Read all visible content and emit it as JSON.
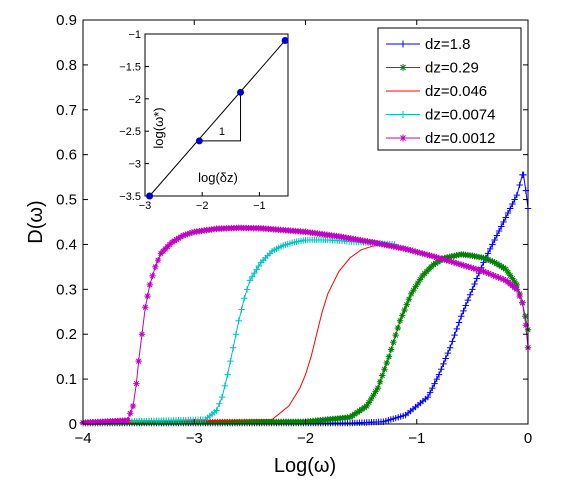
{
  "chart_data": {
    "type": "line",
    "xlabel": "Log(ω)",
    "ylabel": "D(ω)",
    "xlim": [
      -4,
      0
    ],
    "ylim": [
      0,
      0.9
    ],
    "xticks": [
      "−4",
      "−3",
      "−2",
      "−1",
      "0"
    ],
    "yticks": [
      "0",
      "0.1",
      "0.2",
      "0.3",
      "0.4",
      "0.5",
      "0.6",
      "0.7",
      "0.8",
      "0.9"
    ],
    "grid": false,
    "legend_position": "top-right",
    "series": [
      {
        "name": "dz=1.8",
        "color": "#0000ff",
        "marker": "plus",
        "x": [
          -4,
          -1.6,
          -1.3,
          -1.1,
          -0.9,
          -0.8,
          -0.7,
          -0.6,
          -0.5,
          -0.4,
          -0.3,
          -0.2,
          -0.1,
          -0.05,
          -0.04,
          -0.02,
          0
        ],
        "y": [
          0.002,
          0.002,
          0.005,
          0.02,
          0.06,
          0.11,
          0.17,
          0.24,
          0.3,
          0.36,
          0.41,
          0.46,
          0.51,
          0.555,
          0.555,
          0.52,
          0.48
        ]
      },
      {
        "name": "dz=0.29",
        "color": "#008000",
        "marker": "star",
        "x": [
          -4,
          -2.0,
          -1.6,
          -1.45,
          -1.35,
          -1.25,
          -1.15,
          -1.05,
          -0.95,
          -0.85,
          -0.75,
          -0.6,
          -0.5,
          -0.4,
          -0.3,
          -0.2,
          -0.1,
          -0.05,
          0
        ],
        "y": [
          0.003,
          0.005,
          0.015,
          0.04,
          0.08,
          0.15,
          0.23,
          0.29,
          0.33,
          0.355,
          0.37,
          0.378,
          0.375,
          0.37,
          0.36,
          0.345,
          0.31,
          0.27,
          0.21
        ]
      },
      {
        "name": "dz=0.046",
        "color": "#ff0000",
        "marker": "none",
        "x": [
          -4,
          -2.3,
          -2.15,
          -2.05,
          -2.0,
          -1.95,
          -1.9,
          -1.85,
          -1.8,
          -1.7,
          -1.6,
          -1.5,
          -1.4,
          -1.3,
          -1.2
        ],
        "y": [
          0.003,
          0.01,
          0.04,
          0.08,
          0.11,
          0.15,
          0.2,
          0.25,
          0.29,
          0.34,
          0.37,
          0.388,
          0.396,
          0.4,
          0.4
        ]
      },
      {
        "name": "dz=0.0074",
        "color": "#00c0c0",
        "marker": "plus",
        "x": [
          -4,
          -2.9,
          -2.8,
          -2.75,
          -2.7,
          -2.65,
          -2.6,
          -2.55,
          -2.5,
          -2.4,
          -2.3,
          -2.2,
          -2.1,
          -2.0,
          -1.9,
          -1.8,
          -1.5,
          -1.2
        ],
        "y": [
          0.003,
          0.01,
          0.03,
          0.06,
          0.11,
          0.17,
          0.23,
          0.28,
          0.32,
          0.36,
          0.385,
          0.398,
          0.405,
          0.41,
          0.41,
          0.41,
          0.405,
          0.4
        ]
      },
      {
        "name": "dz=0.0012",
        "color": "#c000c0",
        "marker": "star",
        "x": [
          -4,
          -3.6,
          -3.55,
          -3.52,
          -3.5,
          -3.47,
          -3.44,
          -3.4,
          -3.35,
          -3.3,
          -3.2,
          -3.1,
          -3.0,
          -2.8,
          -2.6,
          -2.4,
          -2.2,
          -2.0,
          -1.7,
          -1.4,
          -1.1,
          -0.8,
          -0.6,
          -0.4,
          -0.2,
          -0.1,
          -0.05,
          -0.02,
          0
        ],
        "y": [
          0.003,
          0.008,
          0.04,
          0.09,
          0.14,
          0.2,
          0.26,
          0.31,
          0.35,
          0.38,
          0.405,
          0.42,
          0.428,
          0.435,
          0.437,
          0.436,
          0.432,
          0.428,
          0.418,
          0.405,
          0.39,
          0.37,
          0.355,
          0.34,
          0.32,
          0.3,
          0.27,
          0.22,
          0.17
        ]
      }
    ]
  },
  "inset": {
    "xlabel": "log(δz)",
    "ylabel": "log(ω*)",
    "xlim": [
      -3,
      -0.5
    ],
    "ylim": [
      -3.5,
      -1
    ],
    "xticks": [
      -3,
      -2,
      -1
    ],
    "yticks": [
      -3.5,
      -3,
      -2.5,
      -2,
      -1.5,
      -1
    ],
    "xtick_labels": [
      "−3",
      "−2",
      "−1"
    ],
    "ytick_labels": [
      "−3.5",
      "−3",
      "−2.5",
      "−2",
      "−1.5",
      "−1"
    ],
    "points_x": [
      -2.92,
      -2.05,
      -1.33,
      -0.55
    ],
    "points_y": [
      -3.5,
      -2.65,
      -1.9,
      -1.1
    ],
    "point_color": "#0000cc",
    "slope_label": "1"
  }
}
